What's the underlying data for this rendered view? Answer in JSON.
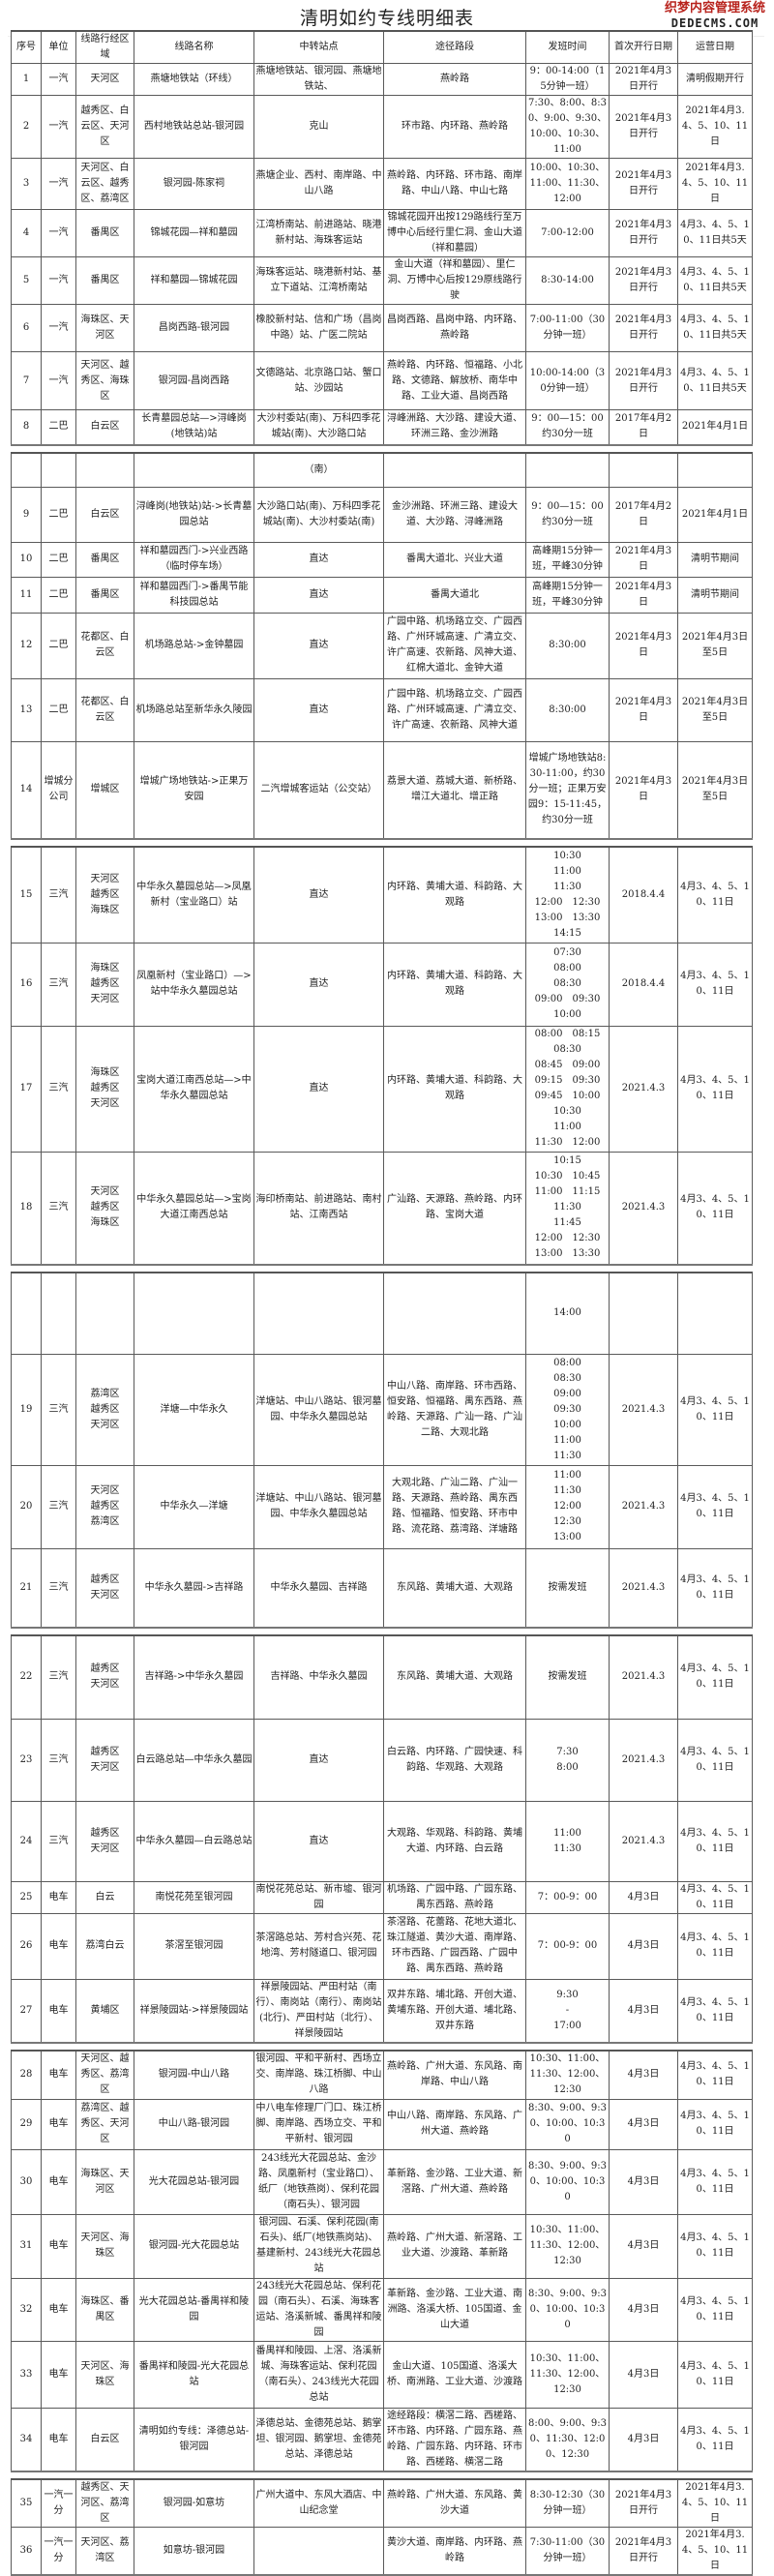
{
  "title": "清明如约专线明细表",
  "headers": [
    "序号",
    "单位",
    "线路行经区域",
    "线路名称",
    "中转站点",
    "途径路段",
    "发班时间",
    "首次开行日期",
    "运营日期"
  ],
  "blocks": [
    {
      "rows": [
        [
          "1",
          "一汽",
          "天河区",
          "燕塘地铁站（环线）",
          "燕塘地铁站、银河园、燕塘地铁站、",
          "燕岭路",
          "9：00-14:00（15分钟一班）",
          "2021年4月3日开行",
          "清明假期开行"
        ],
        [
          "2",
          "一汽",
          "越秀区、白云区、天河区",
          "西村地铁站总站-银河园",
          "克山",
          "环市路、内环路、燕岭路",
          "7:30、8:00、8:30、9:00、9:30、10:00、10:30、11:00",
          "2021年4月3日开行",
          "2021年4月3.4、5、10、11日"
        ],
        [
          "3",
          "一汽",
          "天河区、白云区、越秀区、荔湾区",
          "银河园-陈家祠",
          "燕塘企业、西村、南岸路、中山八路",
          "燕岭路、内环路、环市路、南岸路、中山八路、中山七路",
          "10:00、10:30、11:00、11:30、12:00",
          "2021年4月3日开行",
          "2021年4月3.4、5、10、11日"
        ],
        [
          "4",
          "一汽",
          "番禺区",
          "锦城花园—祥和墓园",
          "江湾桥南站、前进路站、晓港新村站、海珠客运站",
          "锦城花园开出按129路线行至万博中心后经行里仁洞、金山大道（祥和墓园）",
          "7:00-12:00",
          "2021年4月3日开行",
          "4月3、4、5、10、11日共5天"
        ],
        [
          "5",
          "一汽",
          "番禺区",
          "祥和墓园—锦城花园",
          "海珠客运站、晓港新村站、基立下道站、江湾桥南站",
          "金山大道（祥和墓园）、里仁洞、万博中心后按129原线路行驶",
          "8:30-14:00",
          "2021年4月3日开行",
          "4月3、4、5、10、11日共5天"
        ],
        [
          "6",
          "一汽",
          "海珠区、天河区",
          "昌岗西路-银河园",
          "橡胶新村站、信和广场（昌岗中路）站、广医二院站",
          "昌岗西路、昌岗中路、内环路、燕岭路",
          "7:00-11:00（30分钟一班）",
          "2021年4月3日开行",
          "4月3、4、5、10、11日共5天"
        ],
        [
          "7",
          "一汽",
          "天河区、越秀区、海珠区",
          "银河园-昌岗西路",
          "文德路站、北京路口站、蟹口站、沙园站",
          "燕岭路、内环路、恒福路、小北路、文德路、解放桥、南华中路、工业大道、昌岗西路",
          "10:00-14:00（30分钟一班）",
          "2021年4月3日开行",
          "4月3、4、5、10、11日共5天"
        ],
        [
          "8",
          "二巴",
          "白云区",
          "长青墓园总站—>浔峰岗(地铁站)站",
          "大沙村委站(南)、万科四季花城站(南)、大沙路口站",
          "浔峰洲路、大沙路、建设大道、环洲三路、金沙洲路",
          "9：00—15：00约30分一班",
          "2017年4月2日",
          "2021年4月1日"
        ]
      ]
    },
    {
      "rows": [
        [
          "",
          "",
          "",
          "",
          "（南）",
          "",
          "",
          "",
          ""
        ],
        [
          "9",
          "二巴",
          "白云区",
          "浔峰岗(地铁站)站->长青墓园总站",
          "大沙路口站(南)、万科四季花城站(南)、大沙村委站(南)",
          "金沙洲路、环洲三路、建设大道、大沙路、浔峰洲路",
          "9：00—15：00约30分一班",
          "2017年4月2日",
          "2021年4月1日"
        ],
        [
          "10",
          "二巴",
          "番禺区",
          "祥和墓园西门->兴业西路（临时停车场）",
          "直达",
          "番禺大道北、兴业大道",
          "高峰期15分钟一班，平峰30分钟",
          "2021年4月3日",
          "清明节期间"
        ],
        [
          "11",
          "二巴",
          "番禺区",
          "祥和墓园西门->番禺节能科技园总站",
          "直达",
          "番禺大道北",
          "高峰期15分钟一班，平峰30分钟",
          "2021年4月3日",
          "清明节期间"
        ],
        [
          "12",
          "二巴",
          "花都区、白云区",
          "机场路总站->金钟墓园",
          "直达",
          "广园中路、机场路立交、广园西路、广州环城高速、广清立交、许广高速、农新路、风神大道、红棉大道北、金钟大道",
          "8:30:00",
          "2021年4月3日",
          "2021年4月3日至5日"
        ],
        [
          "13",
          "二巴",
          "花都区、白云区",
          "机场路总站至新华永久陵园",
          "直达",
          "广园中路、机场路立交、广园西路、广州环城高速、广清立交、许广高速、农新路、风神大道",
          "8:30:00",
          "2021年4月3日",
          "2021年4月3日至5日"
        ],
        [
          "14",
          "增城分公司",
          "增城区",
          "增城广场地铁站->正果万安园",
          "二汽增城客运站（公交站）",
          "荔景大道、荔城大道、新桥路、增江大道北、增正路",
          "增城广场地铁站8:30-11:00，约30分一班；正果万安园9：15-11:45，约30分一班",
          "2021年4月3日",
          "2021年4月3日至5日"
        ]
      ]
    },
    {
      "rows": [
        [
          "15",
          "三汽",
          "天河区\n越秀区\n海珠区",
          "中华永久墓园总站—>凤凰新村（宝业路口）站",
          "直达",
          "内环路、黄埔大道、科韵路、大观路",
          "10:30\n11:00\n11:30\n12:00　12:30\n13:00　13:30\n14:15",
          "2018.4.4",
          "4月3、4、5、10、11日"
        ],
        [
          "16",
          "三汽",
          "海珠区\n越秀区\n天河区",
          "凤凰新村（宝业路口）—>站中华永久墓园总站",
          "直达",
          "内环路、黄埔大道、科韵路、大观路",
          "07:30\n08:00\n08:30\n09:00　09:30\n10:00",
          "2018.4.4",
          "4月3、4、5、10、11日"
        ],
        [
          "17",
          "三汽",
          "海珠区\n越秀区\n天河区",
          "宝岗大道江南西总站—>中华永久墓园总站",
          "直达",
          "内环路、黄埔大道、科韵路、大观路",
          "08:00　08:15\n08:30\n08:45　09:00\n09:15　09:30\n09:45　10:00\n10:30\n11:00\n11:30　12:00",
          "2021.4.3",
          "4月3、4、5、10、11日"
        ],
        [
          "18",
          "三汽",
          "天河区\n越秀区\n海珠区",
          "中华永久墓园总站—>宝岗大道江南西总站",
          "海印桥南站、前进路站、南村站、江南西站",
          "广汕路、天源路、燕岭路、内环路、宝岗大道",
          "10:15\n10:30　10:45\n11:00　11:15\n11:30\n11:45\n12:00　12:30\n13:00　13:30",
          "2021.4.3",
          "4月3、4、5、10、11日"
        ]
      ]
    },
    {
      "rows": [
        [
          "",
          "",
          "",
          "",
          "",
          "",
          "14:00",
          "",
          ""
        ],
        [
          "19",
          "三汽",
          "荔湾区\n越秀区\n天河区",
          "洋塘—中华永久",
          "洋塘站、中山八路站、银河墓园、中华永久墓园总站",
          "中山八路、南岸路、环市西路、恒安路、恒福路、禺东西路、燕岭路、天源路、广汕一路、广汕二路、大观北路",
          "08:00\n08:30\n09:00\n09:30\n10:00\n11:00\n11:30",
          "2021.4.3",
          "4月3、4、5、10、11日"
        ],
        [
          "20",
          "三汽",
          "天河区\n越秀区\n荔湾区",
          "中华永久—洋塘",
          "洋塘站、中山八路站、银河墓园、中华永久墓园总站",
          "大观北路、广汕二路、广汕一路、天源路、燕岭路、禺东西路、恒福路、恒安路、环市中路、流花路、荔湾路、洋塘路",
          "11:00\n11:30\n12:00\n12:30\n13:00",
          "2021.4.3",
          "4月3、4、5、10、11日"
        ],
        [
          "21",
          "三汽",
          "越秀区\n天河区",
          "中华永久墓园->吉祥路",
          "中华永久墓园、吉祥路",
          "东风路、黄埔大道、大观路",
          "按需发班",
          "2021.4.3",
          "4月3、4、5、10、11日"
        ]
      ]
    },
    {
      "rows": [
        [
          "22",
          "三汽",
          "越秀区\n天河区",
          "吉祥路->中华永久墓园",
          "吉祥路、中华永久墓园",
          "东风路、黄埔大道、大观路",
          "按需发班",
          "2021.4.3",
          "4月3、4、5、10、11日"
        ],
        [
          "23",
          "三汽",
          "越秀区\n天河区",
          "白云路总站—中华永久墓园",
          "直达",
          "白云路、内环路、广园快速、科韵路、华观路、大观路",
          "7:30\n8:00",
          "2021.4.3",
          "4月3、4、5、10、11日"
        ],
        [
          "24",
          "三汽",
          "越秀区\n天河区",
          "中华永久墓园—白云路总站",
          "直达",
          "大观路、华观路、科韵路、黄埔大道、内环路、白云路",
          "11:00\n11:30",
          "2021.4.3",
          "4月3、4、5、10、11日"
        ],
        [
          "25",
          "电车",
          "白云",
          "南悦花苑至银河园",
          "南悦花苑总站、新市墟、银河园",
          "机场路、广园中路、广园东路、禺东西路、燕岭路",
          "7：00-9：00",
          "4月3日",
          "4月3、4、5、10、11日"
        ],
        [
          "26",
          "电车",
          "荔湾白云",
          "茶滘至银河园",
          "茶滘路总站、芳村合兴苑、花地湾、芳村隧道口、银河园",
          "茶滘路、花蕾路、花地大道北、珠江隧道、黄沙大道、南岸路、环市西路、广园西路、广园中路、禺东西路、燕岭路",
          "7：00-9：00",
          "4月3日",
          "4月3、4、5、10、11日"
        ],
        [
          "27",
          "电车",
          "黄埔区",
          "祥景陵园站->祥景陵园站",
          "祥景陵园站、严田村站（南行）、南岗站（南行）、南岗站(北行)、严田村站（北行）、祥景陵园站",
          "双井东路、埔北路、开创大道、黄埔东路、开创大道、埔北路、双井东路",
          "9:30\n-\n17:00",
          "4月3日",
          "4月3、4、5、10、11日"
        ]
      ]
    },
    {
      "rows": [
        [
          "28",
          "电车",
          "天河区、越秀区、荔湾区",
          "银河园-中山八路",
          "银河园、平和平新村、西场立交、南岸路、珠江桥脚、中山八路",
          "燕岭路、广州大道、东风路、南岸路、中山八路",
          "10:30、11:00、11:30、12:00、12:30",
          "4月3日",
          "4月3、4、5、10、11日"
        ],
        [
          "29",
          "电车",
          "荔湾区、越秀区、天河区",
          "中山八路-银河园",
          "中八电车修理厂门口、珠江桥脚、南岸路、西场立交、平和平新村、银河园",
          "中山八路、南岸路、东风路、广州大道、燕岭路",
          "8:30、9:00、9:30、10:00、10:30",
          "4月3日",
          "4月3、4、5、10、11日"
        ],
        [
          "30",
          "电车",
          "海珠区、天河区",
          "光大花园总站-银河园",
          "243线光大花园总站、金沙路、凤凰新村（宝业路口）、纸厂（地铁燕岗）、保利花园（南石头）、银河园",
          "革新路、金沙路、工业大道、新滘路、广州大道、燕岭路",
          "8:30、9:00、9:30、10:00、10:30",
          "4月3日",
          "4月3、4、5、10、11日"
        ],
        [
          "31",
          "电车",
          "天河区、海珠区",
          "银河园-光大花园总站",
          "银河园、石溪、保利花园(南石头)、纸厂(地铁燕岗站)、基建新村、243线光大花园总站",
          "燕岭路、广州大道、新滘路、工业大道、沙渡路、革新路",
          "10:30、11:00、11:30、12:00、12:30",
          "4月3日",
          "4月3、4、5、10、11日"
        ],
        [
          "32",
          "电车",
          "海珠区、番禺区",
          "光大花园总站-番禺祥和陵园",
          "243线光大花园总站、保利花园（南石头）、石溪、海珠客运站、洛溪新城、番禺祥和陵园",
          "革新路、金沙路、工业大道、南洲路、洛溪大桥、105国道、金山大道",
          "8:30、9:00、9:30、10:00、10:30",
          "4月3日",
          "4月3、4、5、10、11日"
        ],
        [
          "33",
          "电车",
          "天河区、海珠区",
          "番禺祥和陵园-光大花园总站",
          "番禺祥和陵园、上滘、洛溪新城、海珠客运站、保利花园（南石头）、243线光大花园总站",
          "金山大道、105国道、洛溪大桥、南洲路、工业大道、沙渡路",
          "10:30、11:00、11:30、12:00、12:30",
          "4月3日",
          "4月3、4、5、10、11日"
        ],
        [
          "34",
          "电车",
          "白云区",
          "清明如约专线：泽德总站-银河园",
          "泽德总站、金德苑总站、鹅掌坦、银河园、鹅掌坦、金德苑总站、泽德总站",
          "途经路段：横滘二路、西槎路、环市路、内环路、广园东路、燕岭路、广园东路、内环路、环市路、西槎路、横滘二路",
          "8:00、9:00、9:30、11:30、12:00、12:30",
          "4月3日",
          "4月3、4、5、10、11日"
        ]
      ]
    },
    {
      "rows": [
        [
          "35",
          "一汽一分",
          "越秀区、天河区、荔湾区",
          "银河园-如意坊",
          "广州大道中、东风大酒店、中山纪念堂",
          "燕岭路、广州大道、东风路、黄沙大道",
          "8:30-12:30（30分钟一班）",
          "2021年4月3日开行",
          "2021年4月3.4、5、10、11日"
        ],
        [
          "36",
          "一汽一分",
          "天河区、荔湾区",
          "如意坊-银河园",
          "",
          "黄沙大道、南岸路、内环路、燕岭路",
          "7:30-11:00（30分钟一班）",
          "2021年4月3日开行",
          "2021年4月3.4、5、10、11日"
        ]
      ]
    }
  ],
  "watermark": {
    "line1": "织梦内容管理系统",
    "line2": "DEDECMS.COM"
  }
}
